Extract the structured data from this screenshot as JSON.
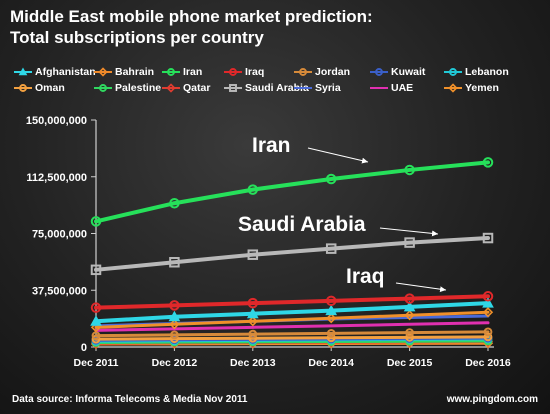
{
  "title_line1": "Middle East mobile phone market prediction:",
  "title_line2": "Total subscriptions per country",
  "footer": {
    "source": "Data source: Informa Telecoms & Media Nov 2011",
    "site": "www.pingdom.com"
  },
  "chart_data": {
    "type": "line",
    "title": "Middle East mobile phone market prediction: Total subscriptions per country",
    "xlabel": "",
    "ylabel": "",
    "categories": [
      "Dec 2011",
      "Dec 2012",
      "Dec 2013",
      "Dec 2014",
      "Dec 2015",
      "Dec 2016"
    ],
    "y_ticks": [
      "0",
      "37,500,000",
      "75,000,000",
      "112,500,000",
      "150,000,000"
    ],
    "ylim": [
      0,
      150000000
    ],
    "grid": false,
    "legend_position": "top",
    "annotations": [
      "Iran",
      "Saudi Arabia",
      "Iraq"
    ],
    "series": [
      {
        "name": "Afghanistan",
        "color": "#2fd7e6",
        "marker": "triangle",
        "values": [
          17000000,
          20000000,
          22000000,
          24000000,
          26500000,
          29000000
        ]
      },
      {
        "name": "Bahrain",
        "color": "#f08a2a",
        "marker": "diamond",
        "values": [
          2000000,
          2100000,
          2200000,
          2300000,
          2400000,
          2500000
        ]
      },
      {
        "name": "Iran",
        "color": "#26e05a",
        "marker": "circle",
        "values": [
          83000000,
          95000000,
          104000000,
          111000000,
          117000000,
          122000000
        ]
      },
      {
        "name": "Iraq",
        "color": "#e0282a",
        "marker": "circle",
        "values": [
          26000000,
          27500000,
          29000000,
          30500000,
          32000000,
          33500000
        ]
      },
      {
        "name": "Jordan",
        "color": "#d68a3a",
        "marker": "circle",
        "values": [
          7500000,
          8000000,
          8500000,
          9000000,
          9500000,
          10000000
        ]
      },
      {
        "name": "Kuwait",
        "color": "#3a5fc8",
        "marker": "circle",
        "values": [
          4500000,
          4800000,
          5000000,
          5300000,
          5600000,
          5900000
        ]
      },
      {
        "name": "Lebanon",
        "color": "#21c8d6",
        "marker": "circle",
        "values": [
          3800000,
          4100000,
          4400000,
          4700000,
          5000000,
          5300000
        ]
      },
      {
        "name": "Oman",
        "color": "#f2a040",
        "marker": "circle",
        "values": [
          5200000,
          5500000,
          5800000,
          6100000,
          6400000,
          6700000
        ]
      },
      {
        "name": "Palestine",
        "color": "#30d860",
        "marker": "circle",
        "values": [
          3000000,
          3200000,
          3400000,
          3600000,
          3800000,
          4000000
        ]
      },
      {
        "name": "Qatar",
        "color": "#e03c30",
        "marker": "diamond",
        "values": [
          2600000,
          2800000,
          3000000,
          3200000,
          3400000,
          3600000
        ]
      },
      {
        "name": "Saudi Arabia",
        "color": "#b8b8b8",
        "marker": "square",
        "values": [
          51000000,
          56000000,
          61000000,
          65000000,
          69000000,
          72000000
        ]
      },
      {
        "name": "Syria",
        "color": "#4a6ad8",
        "marker": "none",
        "values": [
          14000000,
          15500000,
          17000000,
          18500000,
          19500000,
          20500000
        ]
      },
      {
        "name": "UAE",
        "color": "#e030b0",
        "marker": "none",
        "values": [
          11000000,
          12000000,
          13000000,
          14000000,
          15000000,
          16000000
        ]
      },
      {
        "name": "Yemen",
        "color": "#f0902a",
        "marker": "diamond",
        "values": [
          13000000,
          15000000,
          17000000,
          19000000,
          21000000,
          23000000
        ]
      }
    ]
  }
}
